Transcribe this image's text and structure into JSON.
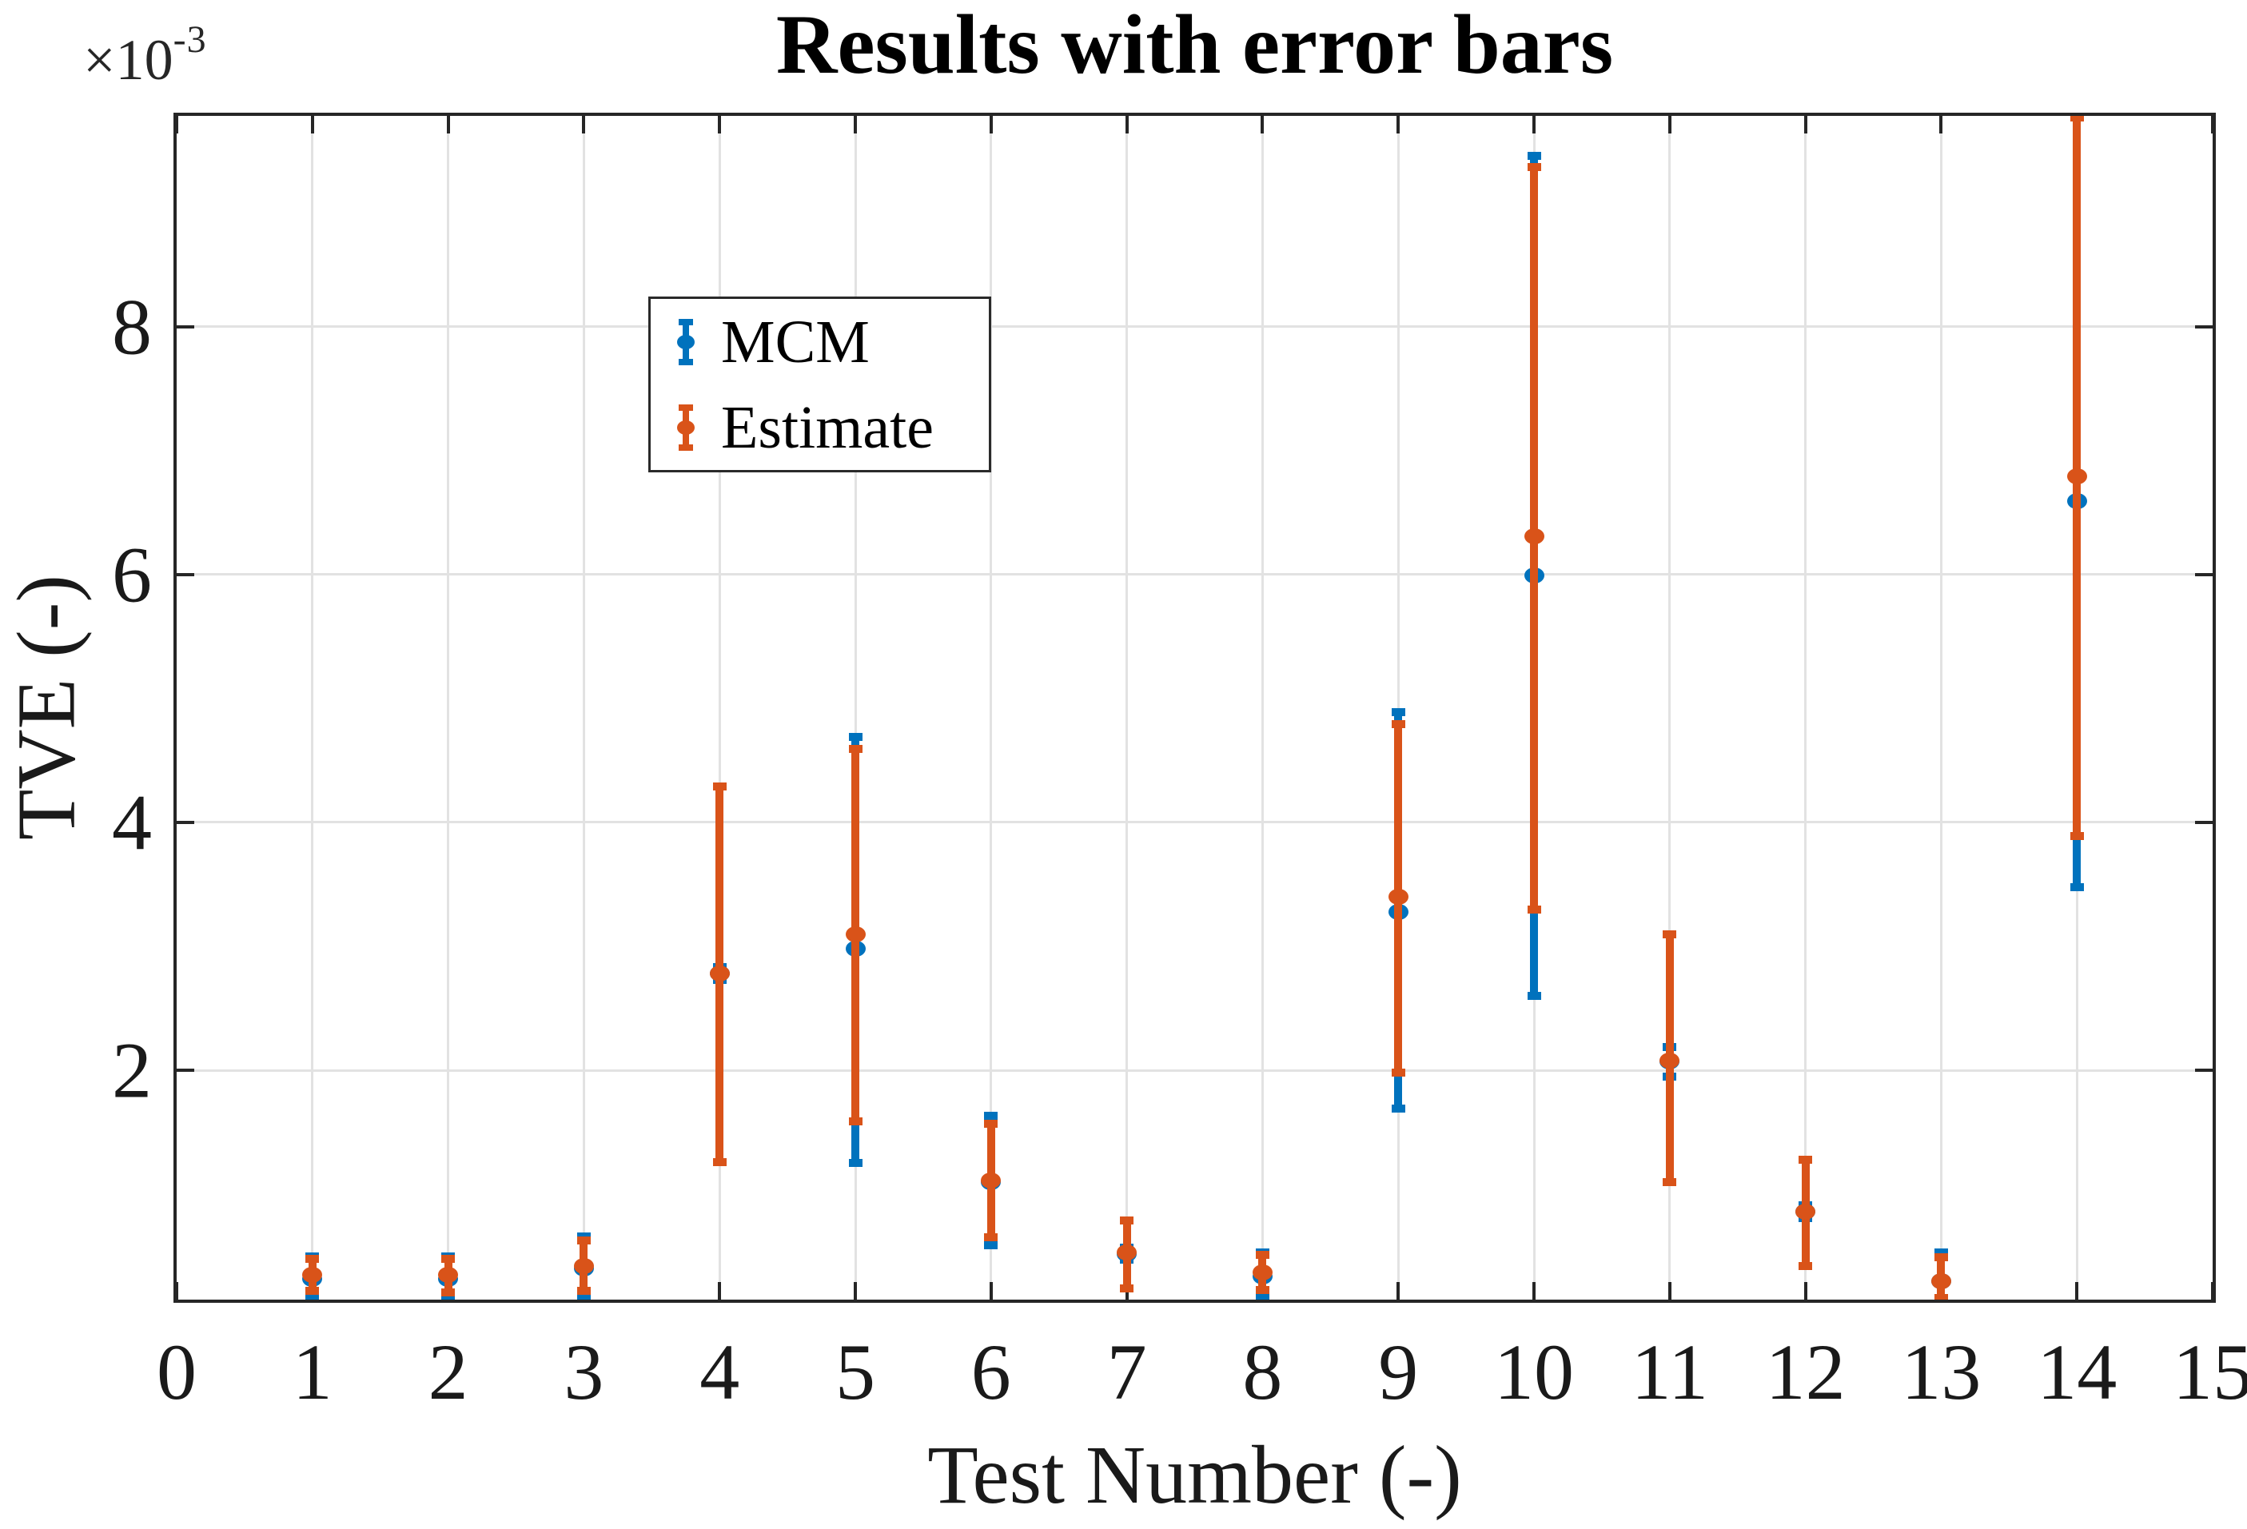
{
  "figure": {
    "background": "#ffffff",
    "text_color": "#1a1a1a",
    "axis_color": "#262626",
    "grid_color": "#e2e2e2"
  },
  "chart_data": {
    "type": "errorbar",
    "title": "Results with error bars",
    "xlabel": "Test Number (-)",
    "ylabel": "TVE (-)",
    "y_exponent": {
      "base": "×10",
      "power": "-3"
    },
    "value_scale": "1e-3",
    "xlim": [
      0,
      15
    ],
    "ylim": [
      0.15,
      9.7
    ],
    "x_ticks": [
      "0",
      "1",
      "2",
      "3",
      "4",
      "5",
      "6",
      "7",
      "8",
      "9",
      "10",
      "11",
      "12",
      "13",
      "14",
      "15"
    ],
    "y_ticks": [
      "2",
      "4",
      "6",
      "8"
    ],
    "grid": true,
    "legend_position": "upper-left-inside",
    "x": [
      1,
      2,
      3,
      4,
      5,
      6,
      7,
      8,
      9,
      10,
      11,
      12,
      13,
      14
    ],
    "series": [
      {
        "name": "MCM",
        "color": "#0072BD",
        "y": [
          0.32,
          0.32,
          0.4,
          2.78,
          2.98,
          1.1,
          0.52,
          0.34,
          3.28,
          5.99,
          2.07,
          0.86,
          0.3,
          6.59
        ],
        "y_lower": [
          0.16,
          0.16,
          0.18,
          2.73,
          1.25,
          0.59,
          0.47,
          0.16,
          1.69,
          2.6,
          1.95,
          0.81,
          0.16,
          3.48
        ],
        "y_upper": [
          0.5,
          0.5,
          0.66,
          2.83,
          4.69,
          1.63,
          0.57,
          0.53,
          4.89,
          9.38,
          2.19,
          0.91,
          0.53,
          9.74
        ]
      },
      {
        "name": "Estimate",
        "color": "#D95319",
        "y": [
          0.35,
          0.35,
          0.42,
          2.78,
          3.1,
          1.11,
          0.53,
          0.37,
          3.4,
          6.31,
          2.08,
          0.86,
          0.3,
          6.79
        ],
        "y_lower": [
          0.22,
          0.21,
          0.22,
          1.26,
          1.59,
          0.65,
          0.24,
          0.23,
          1.98,
          3.3,
          1.1,
          0.42,
          0.16,
          3.89
        ],
        "y_upper": [
          0.48,
          0.48,
          0.63,
          4.29,
          4.59,
          1.57,
          0.79,
          0.51,
          4.79,
          9.29,
          3.1,
          1.28,
          0.49,
          9.69
        ]
      }
    ]
  }
}
